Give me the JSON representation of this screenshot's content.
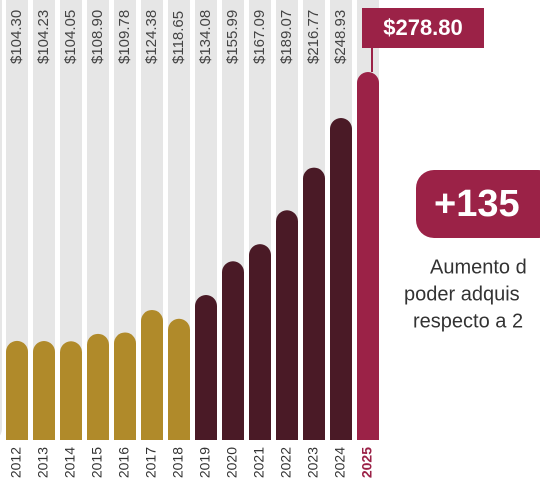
{
  "chart_data": {
    "type": "bar",
    "categories": [
      "2012",
      "2013",
      "2014",
      "2015",
      "2016",
      "2017",
      "2018",
      "2019",
      "2020",
      "2021",
      "2022",
      "2023",
      "2024",
      "2025"
    ],
    "values": [
      104.3,
      104.23,
      104.05,
      108.9,
      109.78,
      124.38,
      118.65,
      134.08,
      155.99,
      167.09,
      189.07,
      216.77,
      248.93,
      278.8
    ],
    "value_labels": [
      "$104.30",
      "$104.23",
      "$104.05",
      "$108.90",
      "$109.78",
      "$124.38",
      "$118.65",
      "$134.08",
      "$155.99",
      "$167.09",
      "$189.07",
      "$216.77",
      "$248.93",
      "$278.80"
    ],
    "colors": [
      "#b08a2a",
      "#b08a2a",
      "#b08a2a",
      "#b08a2a",
      "#b08a2a",
      "#b08a2a",
      "#b08a2a",
      "#4a1a26",
      "#4a1a26",
      "#4a1a26",
      "#4a1a26",
      "#4a1a26",
      "#4a1a26",
      "#9b2247"
    ],
    "ylim": [
      40,
      300
    ],
    "badge": "+135",
    "note_lines": [
      "Aumento d",
      "poder adquis",
      "respecto a 2"
    ]
  }
}
